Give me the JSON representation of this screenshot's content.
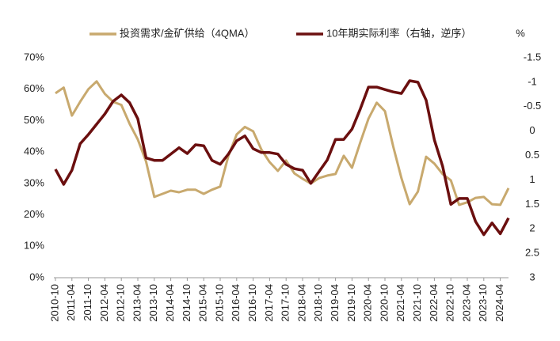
{
  "chart_data": {
    "type": "line",
    "categories": [
      "2010-10",
      null,
      "2011-04",
      null,
      "2011-10",
      null,
      "2012-04",
      null,
      "2012-10",
      null,
      "2013-04",
      null,
      "2013-10",
      null,
      "2014-04",
      null,
      "2014-10",
      null,
      "2015-04",
      null,
      "2015-10",
      null,
      "2016-04",
      null,
      "2016-10",
      null,
      "2017-04",
      null,
      "2017-10",
      null,
      "2018-04",
      null,
      "2018-10",
      null,
      "2019-04",
      null,
      "2019-10",
      null,
      "2020-04",
      null,
      "2020-10",
      null,
      "2021-04",
      null,
      "2021-10",
      null,
      "2022-04",
      null,
      "2022-10",
      null,
      "2023-04",
      null,
      "2023-10",
      null,
      "2024-04",
      null
    ],
    "series": [
      {
        "name": "投资需求/金矿供给（4QMA）",
        "color": "#c8a96e",
        "axis": "y",
        "values": [
          58.7,
          60.5,
          51.6,
          56,
          60,
          62.5,
          58.5,
          56,
          55,
          49,
          44,
          37,
          25.7,
          26.7,
          27.7,
          27.2,
          28,
          28,
          26.7,
          28,
          29,
          38.8,
          45.6,
          48,
          46.6,
          40.8,
          36.8,
          34,
          37.3,
          33.2,
          31.5,
          30,
          31.7,
          32.5,
          33,
          38.8,
          35,
          43,
          50.6,
          55.7,
          53,
          41.8,
          31.7,
          23.4,
          27.4,
          38.5,
          36.3,
          33,
          31,
          23.2,
          24,
          25.4,
          25.7,
          23.4,
          23.2,
          28.5
        ]
      },
      {
        "name": "10年期实际利率（右轴，逆序）",
        "color": "#6b0f0f",
        "axis": "y2",
        "values": [
          0.78,
          1.09,
          0.8,
          0.26,
          0.07,
          -0.14,
          -0.35,
          -0.61,
          -0.74,
          -0.58,
          -0.25,
          0.55,
          0.6,
          0.6,
          0.47,
          0.34,
          0.46,
          0.28,
          0.3,
          0.6,
          0.68,
          0.47,
          0.2,
          0.1,
          0.36,
          0.44,
          0.44,
          0.47,
          0.68,
          0.77,
          0.8,
          1.07,
          0.83,
          0.59,
          0.17,
          0.17,
          -0.04,
          -0.45,
          -0.9,
          -0.9,
          -0.85,
          -0.8,
          -0.77,
          -1.03,
          -1.0,
          -0.63,
          0.18,
          0.72,
          1.5,
          1.38,
          1.38,
          1.85,
          2.12,
          1.88,
          2.1,
          1.78
        ]
      }
    ],
    "ylim": [
      0,
      70
    ],
    "yticks": [
      {
        "value": 0,
        "label": "0%"
      },
      {
        "value": 10,
        "label": "10%"
      },
      {
        "value": 20,
        "label": "20%"
      },
      {
        "value": 30,
        "label": "30%"
      },
      {
        "value": 40,
        "label": "40%"
      },
      {
        "value": 50,
        "label": "50%"
      },
      {
        "value": 60,
        "label": "60%"
      },
      {
        "value": 70,
        "label": "70%"
      }
    ],
    "y2lim": [
      -1.5,
      3
    ],
    "y2ticks": [
      -1.5,
      -1,
      -0.5,
      0,
      0.5,
      1,
      1.5,
      2,
      2.5,
      3
    ],
    "y2_reversed": true,
    "y2_unit_label": "%",
    "legend": "top",
    "grid": false
  }
}
